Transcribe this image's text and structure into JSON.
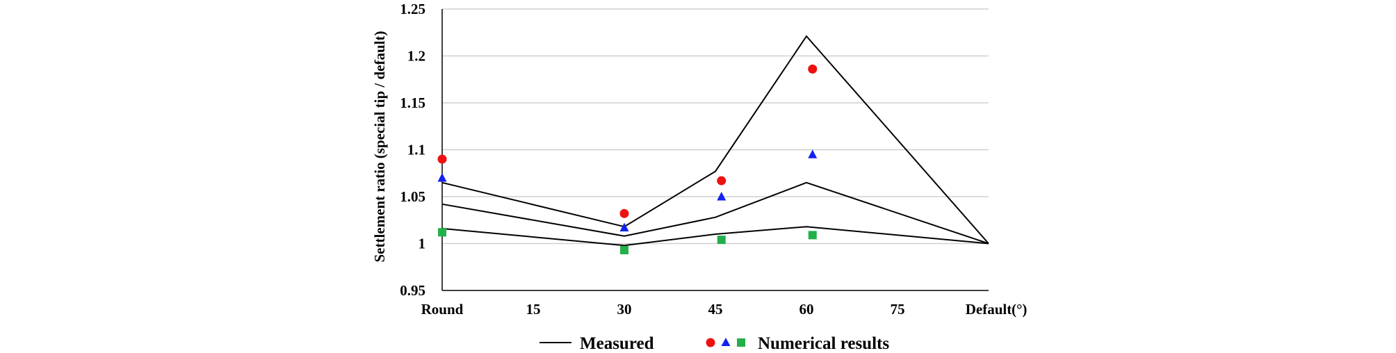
{
  "chart_data": {
    "type": "line",
    "ylabel": "Settlement ratio (special tip / default)",
    "x_unit": "(°)",
    "x_categories": [
      "Round",
      "15",
      "30",
      "45",
      "60",
      "75",
      "Default"
    ],
    "ylim": [
      0.95,
      1.25
    ],
    "y_ticks": [
      "0.95",
      "1",
      "1.05",
      "1.1",
      "1.15",
      "1.2",
      "1.25"
    ],
    "grid": "horizontal",
    "legend": {
      "placement": "bottom",
      "line_label": "Measured",
      "markers_label": "Numerical results"
    },
    "measured_series": [
      {
        "x": [
          0,
          30,
          45,
          60,
          90
        ],
        "y": [
          1.065,
          1.018,
          1.077,
          1.221,
          1.0
        ]
      },
      {
        "x": [
          0,
          30,
          45,
          60,
          90
        ],
        "y": [
          1.042,
          1.008,
          1.028,
          1.065,
          1.0
        ]
      },
      {
        "x": [
          0,
          30,
          45,
          60,
          90
        ],
        "y": [
          1.016,
          0.998,
          1.01,
          1.018,
          1.0
        ]
      }
    ],
    "numerical_series": [
      {
        "marker": "circle",
        "color": "#ee1111",
        "x": [
          0,
          30,
          46,
          61
        ],
        "y": [
          1.09,
          1.032,
          1.067,
          1.186
        ]
      },
      {
        "marker": "triangle",
        "color": "#1122ee",
        "x": [
          0,
          30,
          46,
          61
        ],
        "y": [
          1.07,
          1.017,
          1.05,
          1.095
        ]
      },
      {
        "marker": "square",
        "color": "#22b04b",
        "x": [
          0,
          30,
          46,
          61
        ],
        "y": [
          1.012,
          0.993,
          1.004,
          1.009
        ]
      }
    ]
  }
}
